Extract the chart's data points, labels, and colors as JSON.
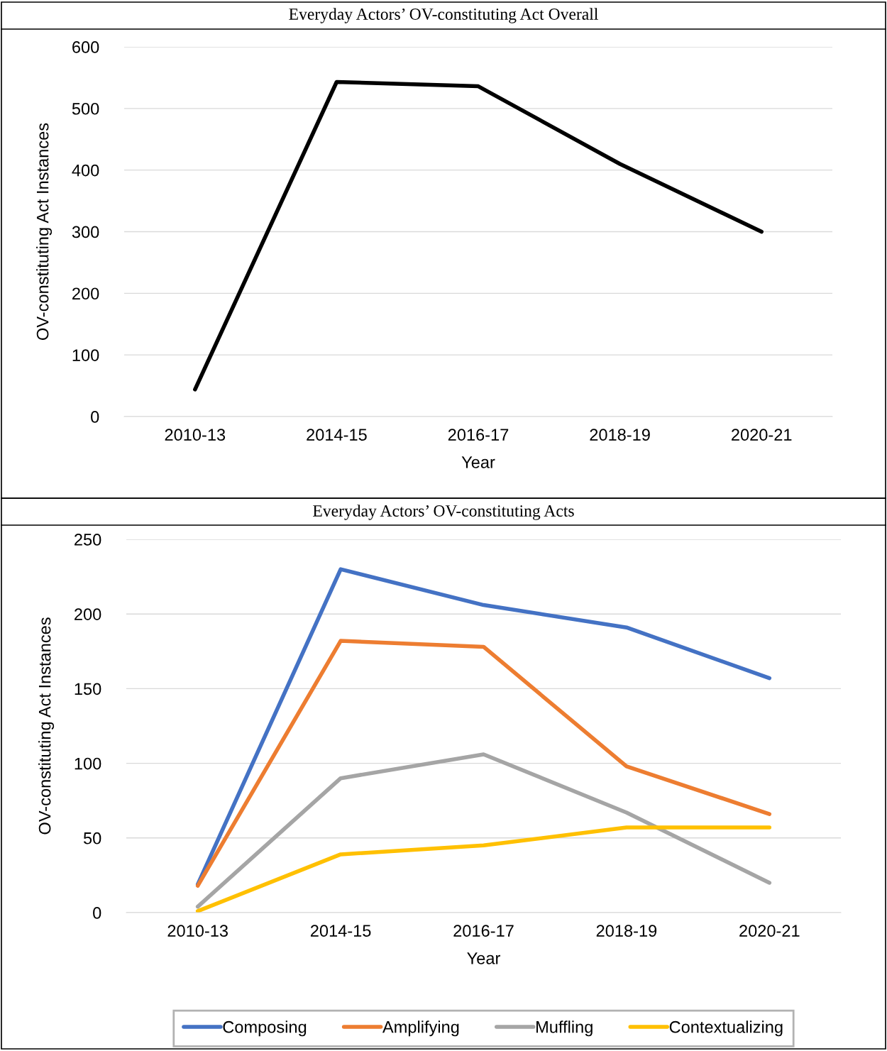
{
  "chart_data": [
    {
      "type": "line",
      "title": "Everyday Actors’ OV-constituting Act Overall",
      "xlabel": "Year",
      "ylabel": "OV-constituting Act Instances",
      "categories": [
        "2010-13",
        "2014-15",
        "2016-17",
        "2018-19",
        "2020-21"
      ],
      "series": [
        {
          "color": "#000000",
          "values": [
            44,
            543,
            536,
            410,
            300
          ]
        }
      ],
      "ylim": [
        0,
        600
      ],
      "yticks": [
        0,
        100,
        200,
        300,
        400,
        500,
        600
      ],
      "grid": "y",
      "legend": false,
      "marker": "none",
      "line_style": "solid"
    },
    {
      "type": "line",
      "title": "Everyday Actors’ OV-constituting Acts",
      "xlabel": "Year",
      "ylabel": "OV-constituting Act Instances",
      "categories": [
        "2010-13",
        "2014-15",
        "2016-17",
        "2018-19",
        "2020-21"
      ],
      "series": [
        {
          "name": "Composing",
          "color": "#4472c4",
          "values": [
            19,
            230,
            206,
            191,
            157
          ]
        },
        {
          "name": "Amplifying",
          "color": "#ed7d31",
          "values": [
            18,
            182,
            178,
            98,
            66
          ]
        },
        {
          "name": "Muffling",
          "color": "#a5a5a5",
          "values": [
            4,
            90,
            106,
            67,
            20
          ]
        },
        {
          "name": "Contextualizing",
          "color": "#ffc000",
          "values": [
            1,
            39,
            45,
            57,
            57
          ]
        }
      ],
      "ylim": [
        0,
        250
      ],
      "yticks": [
        0,
        50,
        100,
        150,
        200,
        250
      ],
      "grid": "y",
      "legend": "bottom",
      "marker": "none",
      "line_style": "solid"
    }
  ]
}
